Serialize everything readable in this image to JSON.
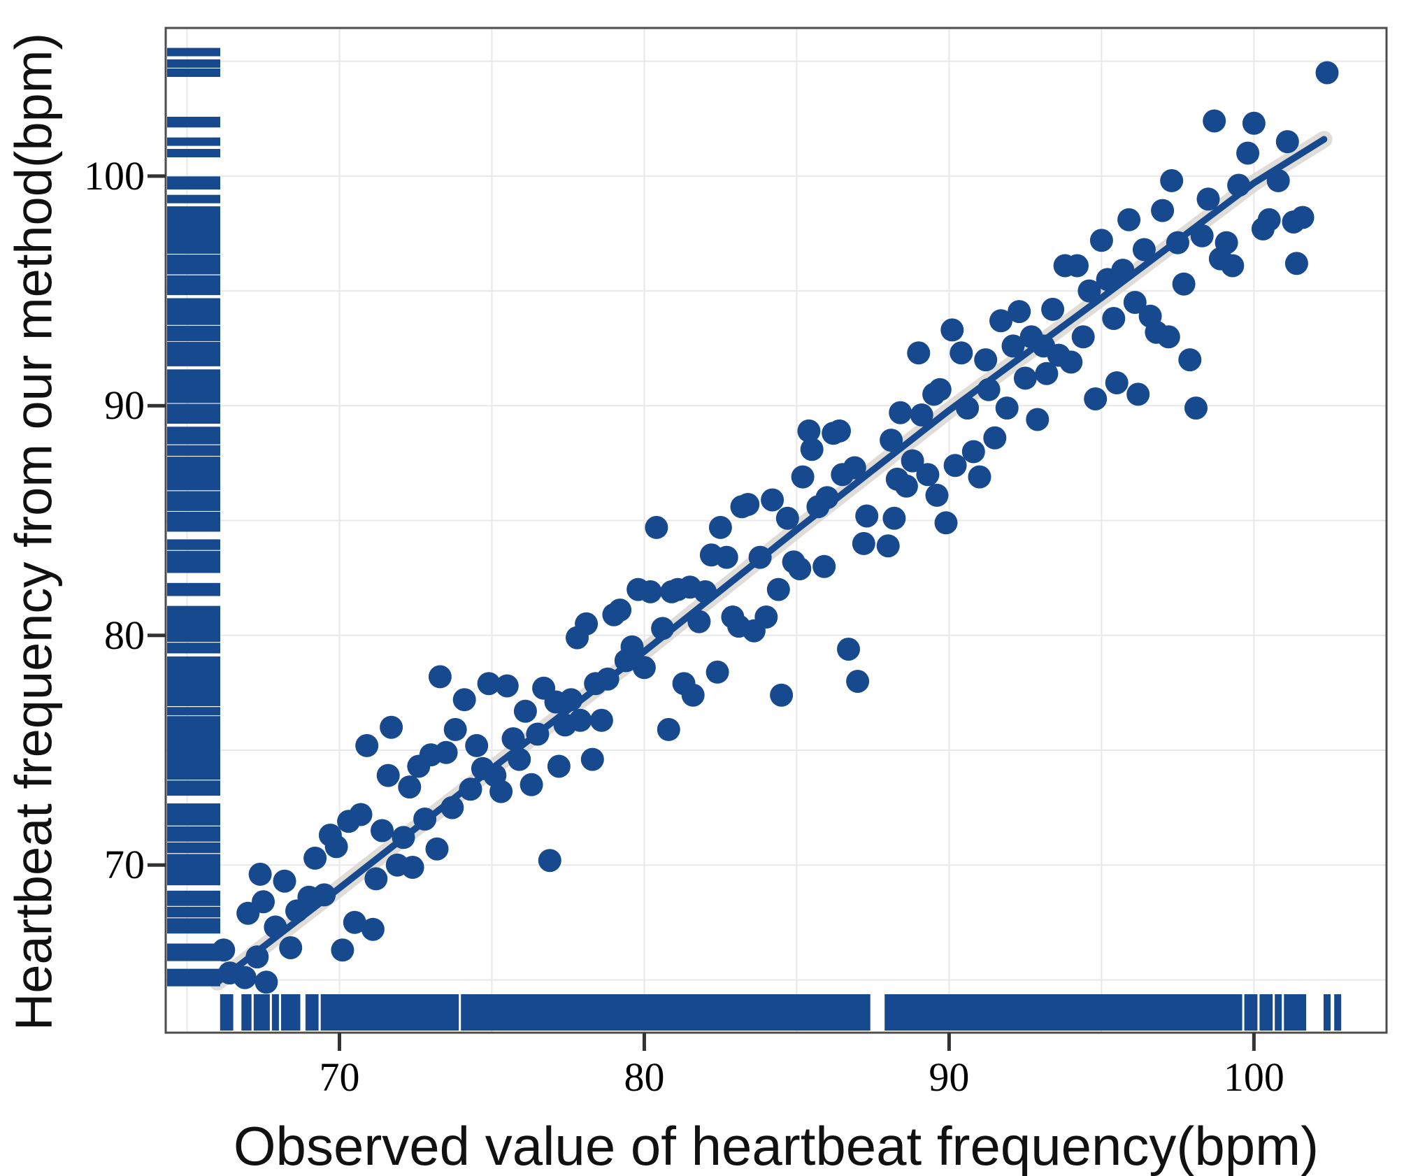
{
  "chart_data": {
    "type": "scatter",
    "title": "",
    "xlabel": "Observed value of heartbeat frequency(bpm)",
    "ylabel": "Heartbeat frequency from our method(bpm)",
    "xlim": [
      64.3,
      104.35
    ],
    "ylim": [
      62.7,
      106.45
    ],
    "x_ticks": [
      70,
      80,
      90,
      100
    ],
    "y_ticks": [
      70,
      80,
      90,
      100
    ],
    "grid": "on",
    "grid_min": 65,
    "grid_max": 105,
    "grid_step": 5,
    "legend_position": "none",
    "marginal_rugs": "both-axes",
    "points": [
      [
        66.2,
        66.3
      ],
      [
        66.4,
        65.3
      ],
      [
        66.9,
        65.1
      ],
      [
        67.0,
        67.9
      ],
      [
        67.3,
        66.0
      ],
      [
        67.4,
        69.6
      ],
      [
        67.5,
        68.4
      ],
      [
        67.6,
        64.9
      ],
      [
        67.9,
        67.3
      ],
      [
        68.2,
        69.3
      ],
      [
        68.4,
        66.4
      ],
      [
        68.6,
        68.0
      ],
      [
        69.0,
        68.6
      ],
      [
        69.2,
        70.3
      ],
      [
        69.5,
        68.7
      ],
      [
        69.7,
        71.3
      ],
      [
        69.9,
        70.8
      ],
      [
        70.1,
        66.3
      ],
      [
        70.3,
        71.9
      ],
      [
        70.5,
        67.5
      ],
      [
        70.7,
        72.2
      ],
      [
        70.9,
        75.2
      ],
      [
        71.1,
        67.2
      ],
      [
        71.2,
        69.4
      ],
      [
        71.4,
        71.5
      ],
      [
        71.6,
        73.9
      ],
      [
        71.7,
        76.0
      ],
      [
        71.9,
        70.0
      ],
      [
        72.1,
        71.2
      ],
      [
        72.3,
        73.4
      ],
      [
        72.4,
        69.9
      ],
      [
        72.6,
        74.3
      ],
      [
        72.8,
        72.0
      ],
      [
        73.0,
        74.8
      ],
      [
        73.2,
        70.7
      ],
      [
        73.3,
        78.2
      ],
      [
        73.5,
        74.9
      ],
      [
        73.7,
        72.5
      ],
      [
        73.8,
        75.9
      ],
      [
        74.1,
        77.2
      ],
      [
        74.3,
        73.3
      ],
      [
        74.5,
        75.2
      ],
      [
        74.7,
        74.2
      ],
      [
        74.9,
        77.9
      ],
      [
        75.1,
        73.9
      ],
      [
        75.3,
        73.2
      ],
      [
        75.5,
        77.8
      ],
      [
        75.7,
        75.5
      ],
      [
        75.9,
        74.6
      ],
      [
        76.1,
        76.7
      ],
      [
        76.3,
        73.5
      ],
      [
        76.5,
        75.7
      ],
      [
        76.7,
        77.7
      ],
      [
        76.9,
        70.2
      ],
      [
        77.1,
        77.1
      ],
      [
        77.2,
        74.3
      ],
      [
        77.4,
        76.1
      ],
      [
        77.6,
        77.2
      ],
      [
        77.8,
        79.9
      ],
      [
        77.9,
        76.3
      ],
      [
        78.1,
        80.5
      ],
      [
        78.3,
        74.6
      ],
      [
        78.4,
        77.9
      ],
      [
        78.6,
        76.3
      ],
      [
        78.8,
        78.1
      ],
      [
        79.0,
        80.9
      ],
      [
        79.2,
        81.1
      ],
      [
        79.4,
        78.9
      ],
      [
        79.6,
        79.5
      ],
      [
        79.8,
        82.0
      ],
      [
        80.0,
        78.6
      ],
      [
        80.2,
        81.9
      ],
      [
        80.4,
        84.7
      ],
      [
        80.6,
        80.3
      ],
      [
        80.8,
        75.9
      ],
      [
        80.9,
        81.9
      ],
      [
        81.1,
        82.0
      ],
      [
        81.3,
        77.9
      ],
      [
        81.5,
        82.1
      ],
      [
        81.6,
        77.4
      ],
      [
        81.8,
        80.6
      ],
      [
        82.0,
        81.9
      ],
      [
        82.2,
        83.5
      ],
      [
        82.4,
        78.4
      ],
      [
        82.5,
        84.7
      ],
      [
        82.7,
        83.4
      ],
      [
        82.9,
        80.8
      ],
      [
        83.1,
        80.4
      ],
      [
        83.2,
        85.6
      ],
      [
        83.4,
        85.7
      ],
      [
        83.6,
        80.2
      ],
      [
        83.8,
        83.4
      ],
      [
        84.0,
        80.8
      ],
      [
        84.2,
        85.9
      ],
      [
        84.4,
        82.0
      ],
      [
        84.5,
        77.4
      ],
      [
        84.7,
        85.1
      ],
      [
        84.9,
        83.2
      ],
      [
        85.1,
        82.9
      ],
      [
        85.2,
        86.9
      ],
      [
        85.4,
        88.9
      ],
      [
        85.5,
        88.1
      ],
      [
        85.7,
        85.6
      ],
      [
        85.9,
        83.0
      ],
      [
        86.0,
        86.0
      ],
      [
        86.2,
        88.8
      ],
      [
        86.4,
        88.9
      ],
      [
        86.5,
        87.0
      ],
      [
        86.7,
        79.4
      ],
      [
        86.9,
        87.3
      ],
      [
        87.0,
        78.0
      ],
      [
        87.2,
        84.0
      ],
      [
        87.3,
        85.2
      ],
      [
        88.0,
        83.9
      ],
      [
        88.1,
        88.5
      ],
      [
        88.2,
        85.1
      ],
      [
        88.3,
        86.8
      ],
      [
        88.4,
        89.7
      ],
      [
        88.6,
        86.5
      ],
      [
        88.8,
        87.6
      ],
      [
        89.0,
        92.3
      ],
      [
        89.1,
        89.6
      ],
      [
        89.3,
        87.0
      ],
      [
        89.5,
        90.5
      ],
      [
        89.6,
        86.1
      ],
      [
        89.7,
        90.7
      ],
      [
        89.9,
        84.9
      ],
      [
        90.1,
        93.3
      ],
      [
        90.2,
        87.4
      ],
      [
        90.4,
        92.3
      ],
      [
        90.6,
        89.9
      ],
      [
        90.8,
        88.0
      ],
      [
        91.0,
        86.9
      ],
      [
        91.2,
        92.0
      ],
      [
        91.3,
        90.7
      ],
      [
        91.5,
        88.6
      ],
      [
        91.7,
        93.7
      ],
      [
        91.9,
        89.9
      ],
      [
        92.1,
        92.6
      ],
      [
        92.3,
        94.1
      ],
      [
        92.5,
        91.2
      ],
      [
        92.7,
        93.0
      ],
      [
        92.9,
        89.4
      ],
      [
        93.1,
        92.6
      ],
      [
        93.2,
        91.4
      ],
      [
        93.4,
        94.2
      ],
      [
        93.6,
        92.2
      ],
      [
        93.8,
        96.1
      ],
      [
        94.0,
        91.9
      ],
      [
        94.2,
        96.1
      ],
      [
        94.4,
        93.0
      ],
      [
        94.6,
        95.0
      ],
      [
        94.8,
        90.3
      ],
      [
        95.0,
        97.2
      ],
      [
        95.2,
        95.5
      ],
      [
        95.4,
        93.8
      ],
      [
        95.5,
        91.0
      ],
      [
        95.7,
        95.9
      ],
      [
        95.9,
        98.1
      ],
      [
        96.1,
        94.5
      ],
      [
        96.2,
        90.5
      ],
      [
        96.4,
        96.8
      ],
      [
        96.6,
        93.9
      ],
      [
        96.8,
        93.2
      ],
      [
        97.0,
        98.5
      ],
      [
        97.2,
        93.0
      ],
      [
        97.3,
        99.8
      ],
      [
        97.5,
        97.1
      ],
      [
        97.7,
        95.3
      ],
      [
        97.9,
        92.0
      ],
      [
        98.1,
        89.9
      ],
      [
        98.3,
        97.4
      ],
      [
        98.5,
        99.0
      ],
      [
        98.7,
        102.4
      ],
      [
        98.9,
        96.4
      ],
      [
        99.1,
        97.1
      ],
      [
        99.3,
        96.1
      ],
      [
        99.5,
        99.6
      ],
      [
        99.8,
        101.0
      ],
      [
        100.0,
        102.3
      ],
      [
        100.3,
        97.7
      ],
      [
        100.5,
        98.1
      ],
      [
        100.8,
        99.8
      ],
      [
        101.1,
        101.5
      ],
      [
        101.3,
        98.0
      ],
      [
        101.4,
        96.2
      ],
      [
        101.6,
        98.2
      ],
      [
        102.4,
        104.5
      ]
    ],
    "trend_line": [
      [
        66.0,
        64.9
      ],
      [
        70,
        69.0
      ],
      [
        75,
        74.2
      ],
      [
        80,
        79.3
      ],
      [
        85,
        84.6
      ],
      [
        90,
        89.8
      ],
      [
        95,
        94.7
      ],
      [
        100,
        99.7
      ],
      [
        102.3,
        101.6
      ]
    ],
    "rug_extra_x": [
      102.75
    ],
    "rug_extra_y": [
      105.4,
      104.9
    ],
    "colors": {
      "accent": "#17498f",
      "band": "#d8d4d0",
      "grid": "#e8e8e8",
      "border": "#4d4d4d",
      "tick": "#333333",
      "text": "#000000"
    }
  }
}
